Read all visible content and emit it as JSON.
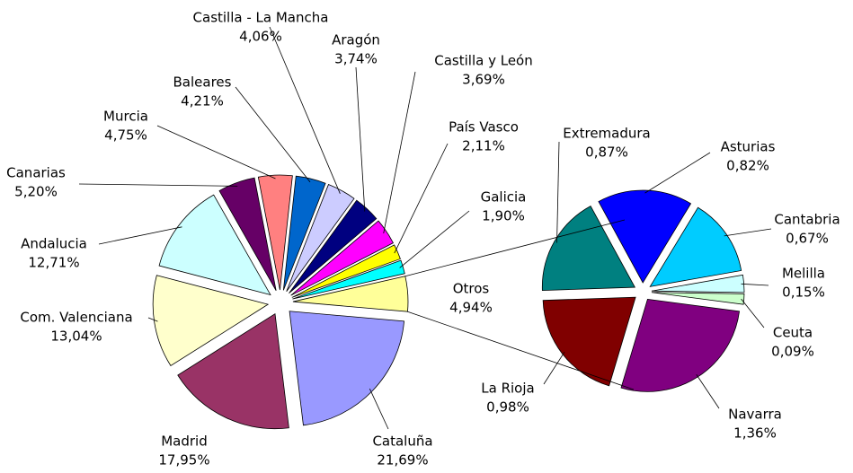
{
  "chart_data": [
    {
      "type": "pie",
      "categories": [
        "Cataluña",
        "Madrid",
        "Com. Valenciana",
        "Andalucia",
        "Canarias",
        "Murcia",
        "Baleares",
        "Castilla - La Mancha",
        "Aragón",
        "Castilla y León",
        "País Vasco",
        "Galicia",
        "Otros"
      ],
      "values": [
        21.69,
        17.95,
        13.04,
        12.71,
        5.2,
        4.75,
        4.21,
        4.06,
        3.74,
        3.69,
        2.11,
        1.9,
        4.94
      ],
      "value_labels": [
        "21,69%",
        "17,95%",
        "13,04%",
        "12,71%",
        "5,20%",
        "4,75%",
        "4,21%",
        "4,06%",
        "3,74%",
        "3,69%",
        "2,11%",
        "1,90%",
        "4,94%"
      ],
      "colors": [
        "#9999ff",
        "#993366",
        "#ffffcc",
        "#ccffff",
        "#660066",
        "#ff8080",
        "#0066cc",
        "#ccccff",
        "#000080",
        "#ff00ff",
        "#ffff00",
        "#00ffff",
        "#ffff99"
      ]
    },
    {
      "type": "pie",
      "categories": [
        "Melilla",
        "Ceuta",
        "Navarra",
        "La Rioja",
        "Extremadura",
        "Asturias",
        "Cantabria"
      ],
      "values": [
        0.15,
        0.09,
        1.36,
        0.98,
        0.87,
        0.82,
        0.67
      ],
      "value_labels": [
        "0,15%",
        "0,09%",
        "1,36%",
        "0,98%",
        "0,87%",
        "0,82%",
        "0,67%"
      ],
      "colors": [
        "#ccffff",
        "#ccffcc",
        "#800080",
        "#800000",
        "#008080",
        "#0000ff",
        "#00ccff"
      ]
    }
  ]
}
